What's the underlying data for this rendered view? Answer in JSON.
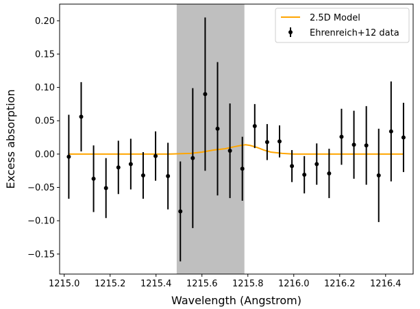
{
  "chart_data": {
    "type": "scatter",
    "xlabel": "Wavelength (Angstrom)",
    "ylabel": "Excess absorption",
    "xlim": [
      1214.98,
      1216.52
    ],
    "ylim": [
      -0.18,
      0.225
    ],
    "xticks": [
      1215.0,
      1215.2,
      1215.4,
      1215.6,
      1215.8,
      1216.0,
      1216.2,
      1216.4
    ],
    "xtick_labels": [
      "1215.0",
      "1215.2",
      "1215.4",
      "1215.6",
      "1215.8",
      "1216.0",
      "1216.2",
      "1216.4"
    ],
    "yticks": [
      -0.15,
      -0.1,
      -0.05,
      0.0,
      0.05,
      0.1,
      0.15,
      0.2
    ],
    "ytick_labels": [
      "−0.15",
      "−0.10",
      "−0.05",
      "0.00",
      "0.05",
      "0.10",
      "0.15",
      "0.20"
    ],
    "grid": false,
    "legend_position": "top-right",
    "shaded_region": {
      "x": [
        1215.49,
        1215.785
      ],
      "color": "#bfbfbf"
    },
    "series": [
      {
        "name": "2.5D Model",
        "kind": "line",
        "color": "#ffa500",
        "x": [
          1215.02,
          1215.45,
          1215.5,
          1215.55,
          1215.6,
          1215.65,
          1215.7,
          1215.74,
          1215.77,
          1215.79,
          1215.81,
          1215.84,
          1215.87,
          1215.9,
          1215.95,
          1216.0,
          1216.48
        ],
        "y": [
          0.0,
          0.0,
          0.0005,
          0.001,
          0.003,
          0.006,
          0.008,
          0.011,
          0.013,
          0.014,
          0.013,
          0.01,
          0.006,
          0.003,
          0.001,
          0.0,
          0.0
        ]
      },
      {
        "name": "Ehrenreich+12 data",
        "kind": "errorbar",
        "color": "#000000",
        "x": [
          1215.02,
          1215.074,
          1215.128,
          1215.182,
          1215.236,
          1215.29,
          1215.344,
          1215.398,
          1215.452,
          1215.506,
          1215.56,
          1215.614,
          1215.668,
          1215.722,
          1215.776,
          1215.83,
          1215.884,
          1215.938,
          1215.992,
          1216.046,
          1216.1,
          1216.154,
          1216.208,
          1216.262,
          1216.316,
          1216.37,
          1216.424,
          1216.478
        ],
        "y": [
          -0.004,
          0.056,
          -0.037,
          -0.051,
          -0.02,
          -0.015,
          -0.032,
          -0.003,
          -0.033,
          -0.086,
          -0.006,
          0.09,
          0.038,
          0.005,
          -0.022,
          0.042,
          0.018,
          0.019,
          -0.018,
          -0.031,
          -0.015,
          -0.029,
          0.026,
          0.014,
          0.013,
          -0.032,
          0.034,
          0.025
        ],
        "yerr": [
          0.063,
          0.052,
          0.05,
          0.045,
          0.04,
          0.038,
          0.035,
          0.037,
          0.05,
          0.075,
          0.105,
          0.115,
          0.1,
          0.071,
          0.048,
          0.033,
          0.027,
          0.024,
          0.024,
          0.028,
          0.031,
          0.037,
          0.042,
          0.051,
          0.059,
          0.07,
          0.075,
          0.052
        ]
      }
    ]
  }
}
